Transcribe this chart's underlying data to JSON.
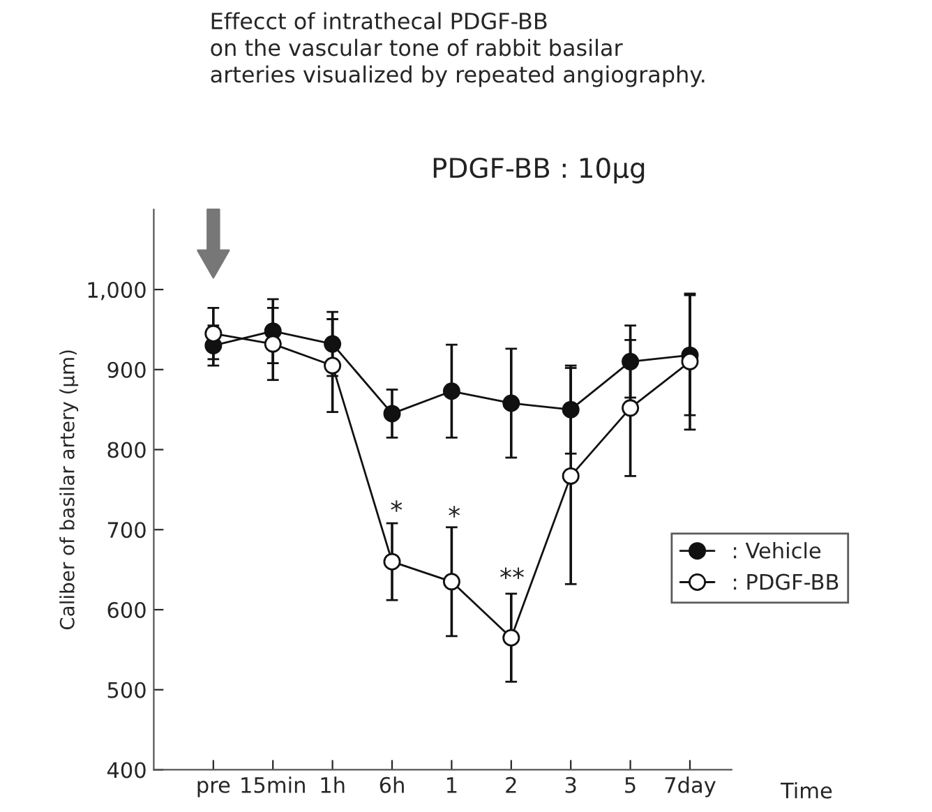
{
  "chart_data": {
    "type": "line",
    "title": "Effecct of intrathecal PDGF-BB\non the vascular tone of rabbit basilar\narteries visualized by repeated angiography.",
    "ylabel": "Caliber of basilar artery (μm)",
    "xlabel": "Time",
    "categories": [
      "pre",
      "15min",
      "1h",
      "6h",
      "1",
      "2",
      "3",
      "5",
      "7day"
    ],
    "series": [
      {
        "name": ": Vehicle",
        "color": "#111111",
        "values": [
          930,
          948,
          932,
          845,
          873,
          858,
          850,
          910,
          918
        ],
        "errors": [
          25,
          40,
          40,
          30,
          58,
          68,
          55,
          45,
          75
        ]
      },
      {
        "name": ": PDGF-BB",
        "color": "#111111",
        "values": [
          945,
          932,
          905,
          660,
          635,
          565,
          767,
          852,
          910
        ],
        "errors": [
          32,
          45,
          58,
          48,
          68,
          55,
          135,
          85,
          85
        ]
      }
    ],
    "annotations": [
      "PDGF-BB : 10μg",
      "*",
      "*",
      "**"
    ],
    "ylim": [
      400,
      1100
    ],
    "yticks": [
      400,
      500,
      600,
      700,
      800,
      900,
      {
        "value": 1000,
        "label": "1,000"
      }
    ],
    "grid": false,
    "legend": "right",
    "marker": "circle",
    "line_style": "solid"
  }
}
